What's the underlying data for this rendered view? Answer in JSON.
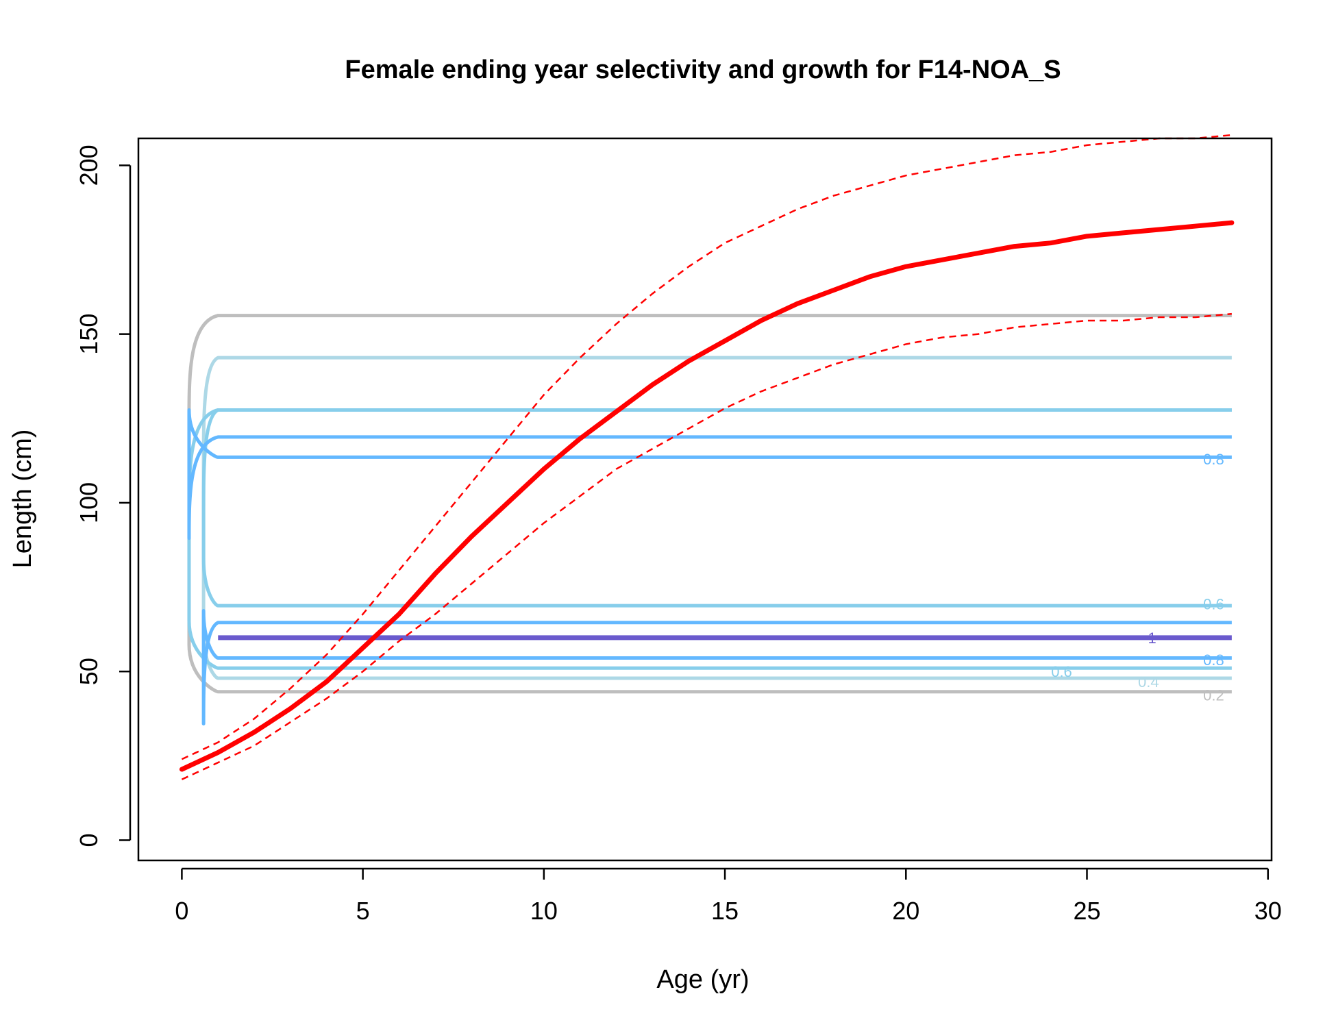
{
  "chart_data": {
    "type": "line",
    "title": "Female ending year selectivity and growth for F14-NOA_S",
    "xlabel": "Age (yr)",
    "ylabel": "Length (cm)",
    "xlim": [
      -1.2,
      30.1
    ],
    "ylim": [
      -6,
      208
    ],
    "xticks": [
      0,
      5,
      10,
      15,
      20,
      25,
      30
    ],
    "yticks": [
      0,
      50,
      100,
      150,
      200
    ],
    "grid": false,
    "colors": {
      "growth": "#ff0000",
      "contour_0_2": "#bebebe",
      "contour_0_4": "#add8e6",
      "contour_0_6": "#87ceeb",
      "contour_0_8": "#63b8ff",
      "contour_1": "#6a5acd"
    },
    "growth_curve": {
      "name": "mean length at age",
      "x": [
        0,
        1,
        2,
        3,
        4,
        5,
        6,
        7,
        8,
        9,
        10,
        11,
        12,
        13,
        14,
        15,
        16,
        17,
        18,
        19,
        20,
        21,
        22,
        23,
        24,
        25,
        26,
        27,
        28,
        29
      ],
      "y": [
        21,
        26,
        32,
        39,
        47,
        57,
        67,
        79,
        90,
        100,
        110,
        119,
        127,
        135,
        142,
        148,
        154,
        159,
        163,
        167,
        170,
        172,
        174,
        176,
        177,
        179,
        180,
        181,
        182,
        183
      ]
    },
    "growth_upper": {
      "name": "upper interval",
      "x": [
        0,
        1,
        2,
        3,
        4,
        5,
        6,
        7,
        8,
        9,
        10,
        11,
        12,
        13,
        14,
        15,
        16,
        17,
        18,
        19,
        20,
        21,
        22,
        23,
        24,
        25,
        26,
        27,
        28,
        29
      ],
      "y": [
        24,
        29,
        36,
        45,
        55,
        67,
        80,
        93,
        106,
        119,
        132,
        143,
        153,
        162,
        170,
        177,
        182,
        187,
        191,
        194,
        197,
        199,
        201,
        203,
        204,
        206,
        207,
        208,
        208,
        209
      ]
    },
    "growth_lower": {
      "name": "lower interval",
      "x": [
        0,
        1,
        2,
        3,
        4,
        5,
        6,
        7,
        8,
        9,
        10,
        11,
        12,
        13,
        14,
        15,
        16,
        17,
        18,
        19,
        20,
        21,
        22,
        23,
        24,
        25,
        26,
        27,
        28,
        29
      ],
      "y": [
        18,
        23,
        28,
        35,
        42,
        50,
        59,
        67,
        76,
        85,
        94,
        102,
        110,
        116,
        122,
        128,
        133,
        137,
        141,
        144,
        147,
        149,
        150,
        152,
        153,
        154,
        154,
        155,
        155,
        156
      ]
    },
    "selectivity_contours": [
      {
        "level": "0.2",
        "color": "#bebebe",
        "band": [
          44,
          155.5
        ],
        "label_pos": [
          28.5,
          43
        ]
      },
      {
        "level": "0.4",
        "color": "#add8e6",
        "band": [
          48,
          143
        ],
        "label_pos": [
          26.7,
          47
        ]
      },
      {
        "level": "0.6",
        "color": "#87ceeb",
        "band": [
          51,
          127.5
        ],
        "label_pos": [
          24.3,
          50
        ]
      },
      {
        "level": "0.6",
        "color": "#87ceeb",
        "band": [
          69.5,
          127.5
        ],
        "label_pos": [
          28.5,
          70
        ]
      },
      {
        "level": "0.8",
        "color": "#63b8ff",
        "band": [
          113.5,
          119.5
        ],
        "label_pos": [
          28.5,
          113
        ]
      },
      {
        "level": "0.8",
        "color": "#63b8ff",
        "band": [
          54,
          64.5
        ],
        "label_pos": [
          28.5,
          53.5
        ]
      },
      {
        "level": "1",
        "color": "#6a5acd",
        "band": [
          60,
          60
        ],
        "label_pos": [
          26.8,
          60
        ]
      }
    ]
  }
}
